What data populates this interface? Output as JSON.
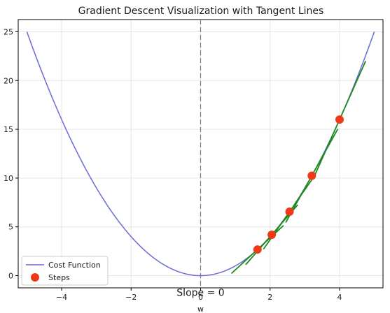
{
  "chart_data": {
    "type": "line",
    "title": "Gradient Descent Visualization with Tangent Lines",
    "xlabel": "w",
    "ylabel": "",
    "xlim": [
      -5.25,
      5.25
    ],
    "ylim": [
      -1.25,
      26.25
    ],
    "x_ticks": [
      -4,
      -2,
      0,
      2,
      4
    ],
    "y_ticks": [
      0,
      5,
      10,
      15,
      20,
      25
    ],
    "x_tick_labels": [
      "−4",
      "−2",
      "0",
      "2",
      "4"
    ],
    "y_tick_labels": [
      "0",
      "5",
      "10",
      "15",
      "20",
      "25"
    ],
    "grid": true,
    "legend_position": "lower-left",
    "series": [
      {
        "name": "Cost Function",
        "kind": "curve",
        "function": "w^2",
        "x_range": [
          -5,
          5
        ],
        "color": "#6b6bd6"
      },
      {
        "name": "Steps",
        "kind": "scatter",
        "color": "#f03a17",
        "x": [
          4.0,
          3.2,
          2.56,
          2.048,
          1.638
        ],
        "y": [
          16.0,
          10.24,
          6.554,
          4.194,
          2.684
        ]
      }
    ],
    "tangent_lines": {
      "color": "#1e8a1e",
      "lines": [
        {
          "x0": 4.0,
          "y0": 16.0,
          "slope": 8.0,
          "half_width": 0.75
        },
        {
          "x0": 3.2,
          "y0": 10.24,
          "slope": 6.4,
          "half_width": 0.75
        },
        {
          "x0": 2.56,
          "y0": 6.554,
          "slope": 5.12,
          "half_width": 0.75
        },
        {
          "x0": 2.048,
          "y0": 4.194,
          "slope": 4.096,
          "half_width": 0.75
        },
        {
          "x0": 1.638,
          "y0": 2.684,
          "slope": 3.277,
          "half_width": 0.75
        }
      ]
    },
    "vertical_reference": {
      "x": 0,
      "style": "dashed",
      "color": "#777777"
    },
    "annotation": {
      "text": "Slope = 0",
      "x": 0,
      "y": -1.7
    }
  }
}
